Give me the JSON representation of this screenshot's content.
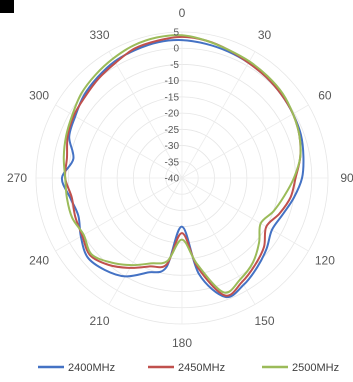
{
  "chart_data": {
    "type": "radar",
    "angle_labels": [
      "0",
      "30",
      "60",
      "90",
      "120",
      "150",
      "180",
      "210",
      "240",
      "270",
      "300",
      "330"
    ],
    "radial_ticks": [
      "5",
      "0",
      "-5",
      "-10",
      "-15",
      "-20",
      "-25",
      "-30",
      "-35",
      "-40"
    ],
    "r_range": [
      -40,
      5
    ],
    "grid": true,
    "legend_position": "bottom",
    "angles": [
      0,
      10,
      20,
      30,
      40,
      50,
      60,
      70,
      80,
      90,
      100,
      110,
      120,
      130,
      140,
      150,
      160,
      170,
      180,
      190,
      200,
      210,
      220,
      230,
      240,
      250,
      260,
      270,
      280,
      290,
      300,
      310,
      320,
      330,
      340,
      350
    ],
    "series": [
      {
        "name": "2400MHz",
        "color": "#4472C4",
        "values": [
          2.5,
          2,
          1.5,
          1,
          0.5,
          0,
          -0.5,
          -1,
          -2,
          -3,
          -5,
          -7,
          -8,
          -6,
          -4,
          -2,
          -1,
          -10,
          -25,
          -12,
          -9,
          -5,
          -3,
          -2,
          -4,
          -6,
          -5,
          -3,
          -6,
          -3,
          -2,
          -0.5,
          0.5,
          1.5,
          2,
          2.5
        ]
      },
      {
        "name": "2450MHz",
        "color": "#C0504D",
        "values": [
          3.5,
          3,
          2,
          1,
          0.5,
          0,
          -0.5,
          -1.5,
          -3,
          -5,
          -6,
          -8,
          -10,
          -7,
          -5,
          -3,
          -1.5,
          -12,
          -23,
          -13,
          -11,
          -8,
          -5,
          -3,
          -4.5,
          -5,
          -5.5,
          -4,
          -4,
          -2.5,
          -1.5,
          -1,
          0,
          1,
          2.5,
          3
        ]
      },
      {
        "name": "2500MHz",
        "color": "#9BBB59",
        "values": [
          4,
          3,
          2,
          1.5,
          1,
          0.5,
          -0.5,
          -1.5,
          -3,
          -5.5,
          -8,
          -10,
          -12,
          -9,
          -6,
          -4,
          -2.5,
          -13,
          -21,
          -14,
          -12,
          -9,
          -6,
          -3.5,
          -5,
          -4,
          -4,
          -4,
          -3,
          -2,
          -1,
          0.5,
          1.5,
          2.5,
          3.5,
          4
        ]
      }
    ]
  }
}
